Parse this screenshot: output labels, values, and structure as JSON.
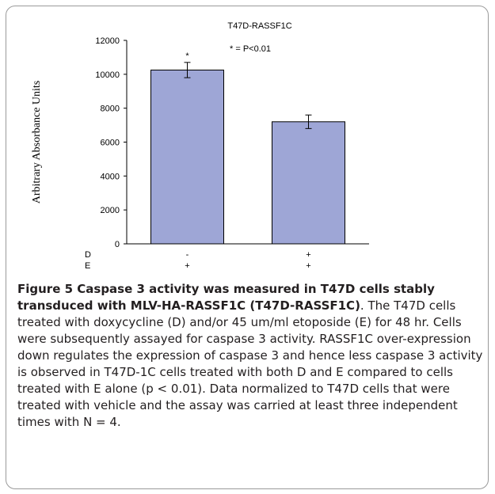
{
  "chart_data": {
    "type": "bar",
    "title": "T47D-RASSF1C",
    "ylabel": "Arbitrary Absorbance Units",
    "xlabel": "",
    "ylim": [
      0,
      12000
    ],
    "yticks": [
      0,
      2000,
      4000,
      6000,
      8000,
      10000,
      12000
    ],
    "grid": false,
    "categories": [
      "- / +",
      "+ / +"
    ],
    "treatment_rows": [
      {
        "label": "D",
        "values": [
          "-",
          "+"
        ]
      },
      {
        "label": "E",
        "values": [
          "+",
          "+"
        ]
      }
    ],
    "values": [
      10250,
      7200
    ],
    "errors": [
      450,
      400
    ],
    "bar_color": "#9ea6d6",
    "significance_marks": [
      "*",
      ""
    ],
    "annotation": "* = P<0.01"
  },
  "caption": {
    "bold": "Figure 5 Caspase 3 activity was measured in T47D cells stably transduced with MLV-HA-RASSF1C (T47D-RASSF1C)",
    "text": ". The T47D cells treated with doxycycline (D) and/or 45 um/ml etoposide (E) for 48 hr. Cells were subsequently assayed for caspase 3 activity. RASSF1C over-expression down regulates the expression of caspase 3 and hence less caspase 3 activity is observed in T47D-1C cells treated with both D and E compared to cells treated with E alone (p < 0.01). Data normalized to T47D cells that were treated with vehicle and the assay was carried at least three independent times with N = 4."
  }
}
